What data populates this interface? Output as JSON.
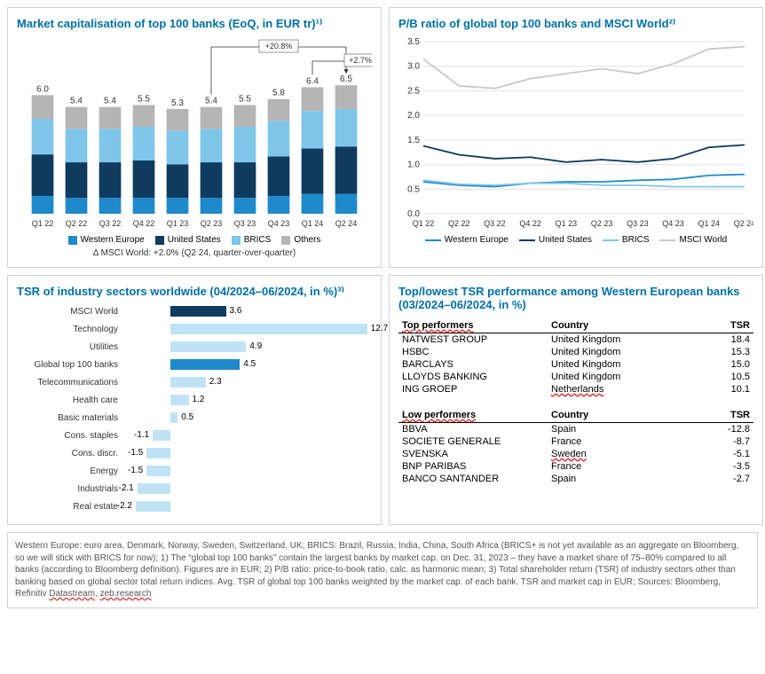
{
  "colors": {
    "western_europe": "#1f8acb",
    "united_states": "#0f3b5f",
    "brics": "#7fc6e8",
    "others": "#b5b5b5",
    "msci_world_line": "#c9c9c9",
    "highlight_bar": "#1f8acb",
    "pale_bar": "#bfe3f4",
    "grid": "#e0e0e0",
    "border": "#d0d0d0",
    "title": "#0070a8"
  },
  "panel1": {
    "title": "Market capitalisation of top 100 banks (EoQ, in EUR tr)¹⁾",
    "categories": [
      "Q1 22",
      "Q2 22",
      "Q3 22",
      "Q4 22",
      "Q1 23",
      "Q2 23",
      "Q3 23",
      "Q4 23",
      "Q1 24",
      "Q2 24"
    ],
    "totals": [
      6.0,
      5.4,
      5.4,
      5.5,
      5.3,
      5.4,
      5.5,
      5.8,
      6.4,
      6.5
    ],
    "series": {
      "Western Europe": [
        0.9,
        0.8,
        0.8,
        0.8,
        0.8,
        0.8,
        0.8,
        0.9,
        1.0,
        1.0
      ],
      "United States": [
        2.1,
        1.8,
        1.8,
        1.9,
        1.7,
        1.8,
        1.8,
        2.0,
        2.3,
        2.4
      ],
      "BRICS": [
        1.8,
        1.7,
        1.7,
        1.7,
        1.7,
        1.7,
        1.8,
        1.8,
        1.9,
        1.9
      ],
      "Others": [
        1.2,
        1.1,
        1.1,
        1.1,
        1.1,
        1.1,
        1.1,
        1.1,
        1.2,
        1.2
      ]
    },
    "annotations": {
      "arrow1": {
        "from_idx": 5,
        "to_idx": 9,
        "label": "+20.8%"
      },
      "arrow2": {
        "from_idx": 8,
        "to_idx": 9,
        "label": "+2.7%"
      }
    },
    "legend": [
      "Western Europe",
      "United States",
      "BRICS",
      "Others"
    ],
    "delta_note": "Δ MSCI World: +2.0% (Q2 24, quarter-over-quarter)",
    "ylim": [
      0,
      7.0
    ]
  },
  "panel2": {
    "title": "P/B ratio of global top 100 banks and MSCI World²⁾",
    "categories": [
      "Q1 22",
      "Q2 22",
      "Q3 22",
      "Q4 22",
      "Q1 23",
      "Q2 23",
      "Q3 23",
      "Q4 23",
      "Q1 24",
      "Q2 24"
    ],
    "ylim": [
      0,
      3.5
    ],
    "ystep": 0.5,
    "series": {
      "Western Europe": [
        0.65,
        0.58,
        0.55,
        0.62,
        0.65,
        0.65,
        0.68,
        0.7,
        0.78,
        0.8
      ],
      "United States": [
        1.38,
        1.2,
        1.12,
        1.15,
        1.05,
        1.1,
        1.05,
        1.12,
        1.35,
        1.4
      ],
      "BRICS": [
        0.68,
        0.6,
        0.58,
        0.62,
        0.62,
        0.58,
        0.58,
        0.55,
        0.55,
        0.55
      ],
      "MSCI World": [
        3.15,
        2.6,
        2.55,
        2.75,
        2.85,
        2.95,
        2.85,
        3.05,
        3.35,
        3.4
      ]
    },
    "legend": [
      "Western Europe",
      "United States",
      "BRICS",
      "MSCI World"
    ]
  },
  "panel3": {
    "title": "TSR of industry sectors worldwide (04/2024–06/2024, in %)³⁾",
    "rows": [
      {
        "label": "MSCI World",
        "value": 3.6,
        "color": "#0f3b5f"
      },
      {
        "label": "Technology",
        "value": 12.7,
        "color": "#bfe3f4"
      },
      {
        "label": "Utilities",
        "value": 4.9,
        "color": "#bfe3f4"
      },
      {
        "label": "Global top 100 banks",
        "value": 4.5,
        "color": "#1f8acb"
      },
      {
        "label": "Telecommunications",
        "value": 2.3,
        "color": "#bfe3f4"
      },
      {
        "label": "Health care",
        "value": 1.2,
        "color": "#bfe3f4"
      },
      {
        "label": "Basic materials",
        "value": 0.5,
        "color": "#bfe3f4"
      },
      {
        "label": "Cons. staples",
        "value": -1.1,
        "color": "#bfe3f4"
      },
      {
        "label": "Cons. discr.",
        "value": -1.5,
        "color": "#bfe3f4"
      },
      {
        "label": "Energy",
        "value": -1.5,
        "color": "#bfe3f4"
      },
      {
        "label": "Industrials",
        "value": -2.1,
        "color": "#bfe3f4"
      },
      {
        "label": "Real estate",
        "value": -2.2,
        "color": "#bfe3f4"
      }
    ],
    "xlim": [
      -3,
      13
    ]
  },
  "panel4": {
    "title": "Top/lowest TSR performance among Western European banks (03/2024–06/2024, in %)",
    "top_header": {
      "a": "Top performers",
      "b": "Country",
      "c": "TSR"
    },
    "low_header": {
      "a": "Low performers",
      "b": "Country",
      "c": "TSR"
    },
    "top": [
      {
        "name": "NATWEST GROUP",
        "country": "United Kingdom",
        "tsr": "18.4",
        "wavy": false
      },
      {
        "name": "HSBC",
        "country": "United Kingdom",
        "tsr": "15.3",
        "wavy": false
      },
      {
        "name": "BARCLAYS",
        "country": "United Kingdom",
        "tsr": "15.0",
        "wavy": false
      },
      {
        "name": "LLOYDS BANKING",
        "country": "United Kingdom",
        "tsr": "10.5",
        "wavy": false
      },
      {
        "name": "ING GROEP",
        "country": "Netherlands",
        "tsr": "10.1",
        "wavy": true
      }
    ],
    "low": [
      {
        "name": "BBVA",
        "country": "Spain",
        "tsr": "-12.8",
        "wavy": false
      },
      {
        "name": "SOCIETE GENERALE",
        "country": "France",
        "tsr": "-8.7",
        "wavy": false
      },
      {
        "name": "SVENSKA",
        "country": "Sweden",
        "tsr": "-5.1",
        "wavy": true
      },
      {
        "name": "BNP PARIBAS",
        "country": "France",
        "tsr": "-3.5",
        "wavy": false
      },
      {
        "name": "BANCO SANTANDER",
        "country": "Spain",
        "tsr": "-2.7",
        "wavy": false
      }
    ]
  },
  "footnote": "Western Europe: euro area, Denmark, Norway, Sweden, Switzerland, UK; BRICS: Brazil, Russia, India, China, South Africa (BRICS+ is not yet available as an aggregate on Bloomberg, so we will stick with BRICS for now); 1) The “global top 100 banks” contain the largest banks by market cap. on Dec. 31, 2023 – they have a market share of 75–80% compared to all banks (according to Bloomberg definition). Figures are in EUR; 2) P/B ratio: price-to-book ratio, calc. as harmonic mean; 3) Total shareholder return (TSR) of industry sectors other than banking based on global sector total return indices. Avg. TSR of global top 100 banks weighted by the market cap. of each bank. TSR and market cap in EUR; Sources: Bloomberg, Refinitiv Datastream, zeb.research",
  "footnote_wavy": [
    "Datastream",
    "zeb.research"
  ]
}
